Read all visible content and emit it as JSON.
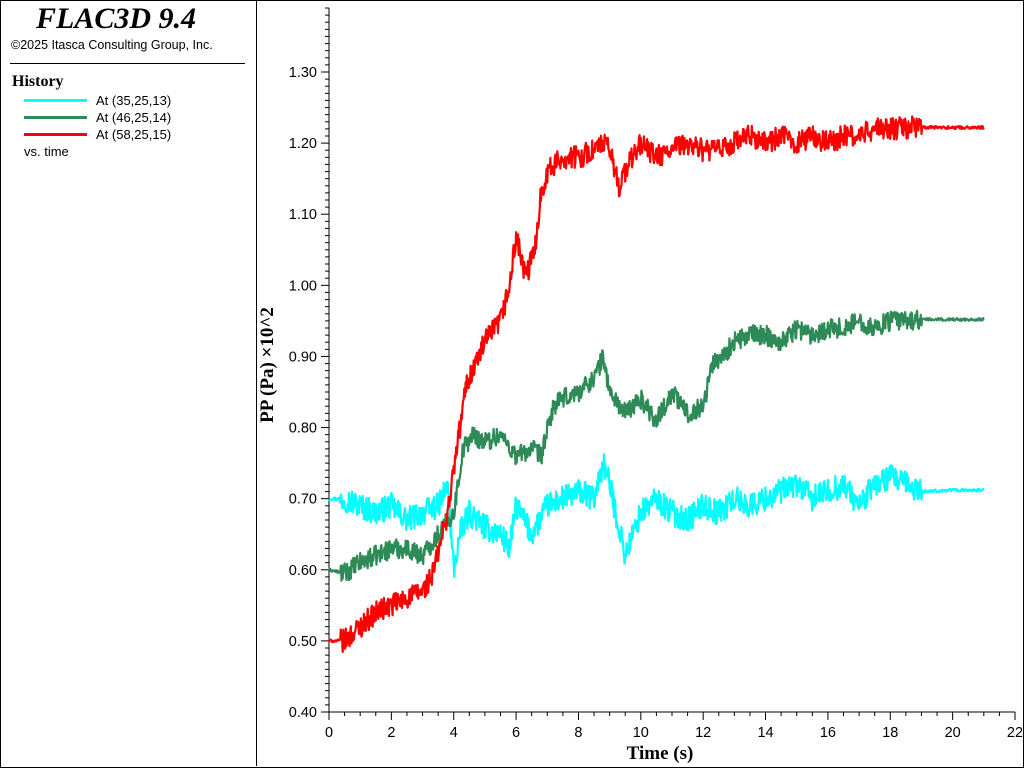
{
  "app": {
    "title": "FLAC3D 9.4",
    "copyright": "©2025 Itasca Consulting Group, Inc."
  },
  "legend": {
    "title": "History",
    "items": [
      {
        "label": "At (35,25,13)",
        "color": "#00ffff"
      },
      {
        "label": "At (46,25,14)",
        "color": "#2e8b57"
      },
      {
        "label": "At (58,25,15)",
        "color": "#ff0000"
      }
    ],
    "vs": "vs. time"
  },
  "chart_data": {
    "type": "line",
    "xlabel": "Time (s)",
    "ylabel": "PP (Pa) ×10^2",
    "xlim": [
      0,
      22
    ],
    "ylim": [
      0.4,
      1.39
    ],
    "xticks": [
      "0",
      "2",
      "4",
      "6",
      "8",
      "10",
      "12",
      "14",
      "16",
      "18",
      "20",
      "22"
    ],
    "yticks": [
      "0.40",
      "0.50",
      "0.60",
      "0.70",
      "0.80",
      "0.90",
      "1.00",
      "1.10",
      "1.20",
      "1.30"
    ],
    "series": [
      {
        "name": "At (35,25,13)",
        "color": "#00ffff",
        "x": [
          0,
          0.5,
          1,
          1.5,
          2,
          2.5,
          3,
          3.5,
          3.8,
          4,
          4.2,
          4.5,
          5,
          5.5,
          5.8,
          6,
          6.5,
          7,
          7.5,
          8,
          8.5,
          8.8,
          9,
          9.5,
          10,
          10.5,
          11,
          11.5,
          12,
          12.5,
          13,
          13.5,
          14,
          14.5,
          15,
          15.5,
          16,
          16.5,
          17,
          17.5,
          18,
          18.5,
          19,
          20,
          21
        ],
        "y": [
          0.7,
          0.7,
          0.69,
          0.68,
          0.69,
          0.67,
          0.68,
          0.69,
          0.72,
          0.6,
          0.65,
          0.68,
          0.66,
          0.65,
          0.63,
          0.69,
          0.65,
          0.69,
          0.7,
          0.71,
          0.7,
          0.75,
          0.72,
          0.62,
          0.68,
          0.7,
          0.68,
          0.67,
          0.69,
          0.68,
          0.7,
          0.69,
          0.7,
          0.71,
          0.72,
          0.7,
          0.71,
          0.72,
          0.69,
          0.72,
          0.73,
          0.72,
          0.71,
          0.712,
          0.712
        ]
      },
      {
        "name": "At (46,25,14)",
        "color": "#2e8b57",
        "x": [
          0,
          0.5,
          1,
          1.5,
          2,
          2.5,
          3,
          3.5,
          4,
          4.3,
          4.6,
          5,
          5.5,
          6,
          6.5,
          6.8,
          7.2,
          7.5,
          8,
          8.5,
          8.8,
          9,
          9.5,
          10,
          10.5,
          11,
          11.5,
          12,
          12.3,
          12.6,
          13,
          13.5,
          14,
          14.5,
          15,
          15.5,
          16,
          16.5,
          17,
          17.5,
          18,
          18.5,
          19,
          20,
          21
        ],
        "y": [
          0.6,
          0.595,
          0.61,
          0.62,
          0.63,
          0.63,
          0.62,
          0.65,
          0.68,
          0.77,
          0.79,
          0.78,
          0.79,
          0.76,
          0.77,
          0.76,
          0.83,
          0.84,
          0.85,
          0.87,
          0.9,
          0.85,
          0.82,
          0.84,
          0.81,
          0.85,
          0.82,
          0.83,
          0.89,
          0.9,
          0.92,
          0.93,
          0.93,
          0.92,
          0.94,
          0.93,
          0.94,
          0.94,
          0.95,
          0.94,
          0.95,
          0.95,
          0.952,
          0.952,
          0.952
        ]
      },
      {
        "name": "At (58,25,15)",
        "color": "#ff0000",
        "x": [
          0,
          0.5,
          1,
          1.5,
          2,
          2.5,
          3,
          3.3,
          3.6,
          3.8,
          4,
          4.2,
          4.4,
          4.7,
          5,
          5.5,
          5.8,
          6,
          6.3,
          6.6,
          6.8,
          7,
          7.5,
          8,
          8.5,
          8.8,
          9,
          9.3,
          9.6,
          10,
          10.5,
          11,
          11.5,
          12,
          12.5,
          13,
          13.5,
          14,
          14.5,
          15,
          15.5,
          16,
          16.5,
          17,
          17.5,
          18,
          18.5,
          19,
          20,
          21
        ],
        "y": [
          0.5,
          0.5,
          0.52,
          0.54,
          0.55,
          0.56,
          0.57,
          0.59,
          0.64,
          0.68,
          0.74,
          0.8,
          0.86,
          0.89,
          0.92,
          0.95,
          1.0,
          1.07,
          1.01,
          1.05,
          1.13,
          1.16,
          1.18,
          1.18,
          1.19,
          1.2,
          1.19,
          1.14,
          1.17,
          1.2,
          1.18,
          1.19,
          1.2,
          1.19,
          1.19,
          1.2,
          1.21,
          1.2,
          1.21,
          1.2,
          1.21,
          1.2,
          1.21,
          1.21,
          1.22,
          1.22,
          1.222,
          1.222,
          1.222,
          1.222
        ]
      }
    ],
    "grid": false,
    "legend_position": "left-panel"
  }
}
